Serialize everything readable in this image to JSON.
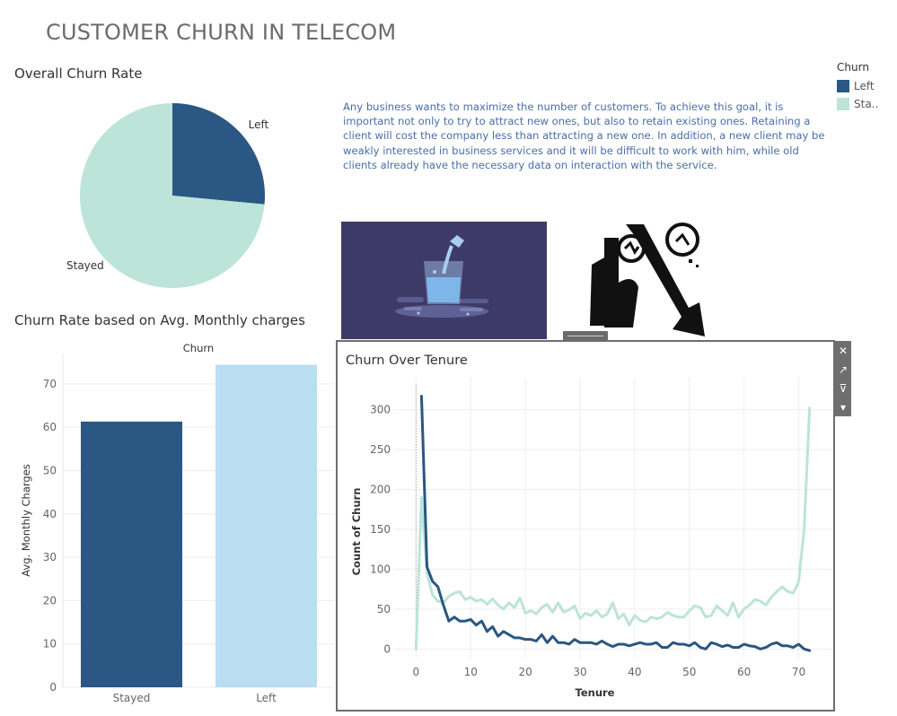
{
  "dashboard": {
    "title": "CUSTOMER CHURN IN TELECOM",
    "description": "Any business wants to maximize the number of customers. To achieve this goal, it is important not only to try to attract new ones, but also to retain existing ones. Retaining a client will cost the company less than attracting a new one. In addition, a new client may be weakly interested in business services and it will be difficult to work with him, while old clients already have the necessary data on interaction with the service."
  },
  "legend": {
    "title": "Churn",
    "items": [
      {
        "label": "Left",
        "color": "#2a5783"
      },
      {
        "label": "Sta..",
        "color": "#bce4d8"
      }
    ]
  },
  "panel_toolbar": {
    "close": "✕",
    "open": "↗",
    "filter": "⊽",
    "menu": "▾"
  },
  "colors": {
    "left": "#2a5783",
    "stayed": "#bce4d8",
    "left_bar": "#2a5783",
    "stayed_bar_light": "#b9ddf1",
    "grid": "#eeeeee"
  },
  "chart_data": [
    {
      "type": "pie",
      "title": "Overall Churn Rate",
      "slices": [
        {
          "label": "Left",
          "value": 26.5,
          "color": "#2a5783"
        },
        {
          "label": "Stayed",
          "value": 73.5,
          "color": "#bce4d8"
        }
      ]
    },
    {
      "type": "bar",
      "title": "Churn Rate based on Avg. Monthly charges",
      "header": "Churn",
      "categories": [
        "Stayed",
        "Left"
      ],
      "values": [
        61.3,
        74.4
      ],
      "colors": [
        "#2a5783",
        "#b9ddf1"
      ],
      "ylabel": "Avg. Monthly Charges",
      "ylim": [
        0,
        77
      ],
      "yticks": [
        0,
        10,
        20,
        30,
        40,
        50,
        60,
        70
      ],
      "grid": true
    },
    {
      "type": "line",
      "title": "Churn Over Tenure",
      "xlabel": "Tenure",
      "ylabel": "Count of Churn",
      "xlim": [
        -4,
        76
      ],
      "ylim": [
        -12,
        340
      ],
      "xticks": [
        0,
        10,
        20,
        30,
        40,
        50,
        60,
        70
      ],
      "yticks": [
        0,
        50,
        100,
        150,
        200,
        250,
        300
      ],
      "grid": true,
      "x": [
        0,
        1,
        2,
        3,
        4,
        5,
        6,
        7,
        8,
        9,
        10,
        11,
        12,
        13,
        14,
        15,
        16,
        17,
        18,
        19,
        20,
        21,
        22,
        23,
        24,
        25,
        26,
        27,
        28,
        29,
        30,
        31,
        32,
        33,
        34,
        35,
        36,
        37,
        38,
        39,
        40,
        41,
        42,
        43,
        44,
        45,
        46,
        47,
        48,
        49,
        50,
        51,
        52,
        53,
        54,
        55,
        56,
        57,
        58,
        59,
        60,
        61,
        62,
        63,
        64,
        65,
        66,
        67,
        68,
        69,
        70,
        71,
        72
      ],
      "series": [
        {
          "name": "Left",
          "color": "#2a5783",
          "values": [
            null,
            317,
            103,
            85,
            78,
            55,
            35,
            40,
            35,
            35,
            37,
            30,
            35,
            22,
            28,
            16,
            22,
            18,
            14,
            14,
            12,
            12,
            10,
            18,
            8,
            16,
            8,
            8,
            6,
            12,
            8,
            8,
            8,
            6,
            10,
            6,
            3,
            6,
            6,
            4,
            6,
            8,
            6,
            6,
            8,
            2,
            2,
            8,
            6,
            6,
            4,
            8,
            2,
            0,
            8,
            6,
            3,
            5,
            2,
            2,
            6,
            4,
            3,
            0,
            2,
            6,
            8,
            4,
            4,
            2,
            6,
            0,
            -2
          ]
        },
        {
          "name": "Stayed",
          "color": "#bce4d8",
          "values": [
            0,
            190,
            95,
            68,
            60,
            58,
            66,
            70,
            72,
            62,
            65,
            60,
            62,
            56,
            63,
            55,
            50,
            58,
            52,
            64,
            45,
            48,
            44,
            52,
            56,
            46,
            58,
            46,
            49,
            54,
            38,
            45,
            42,
            48,
            40,
            44,
            58,
            38,
            44,
            30,
            42,
            36,
            34,
            40,
            38,
            40,
            46,
            42,
            40,
            40,
            48,
            54,
            52,
            40,
            42,
            54,
            48,
            42,
            58,
            40,
            50,
            55,
            62,
            60,
            55,
            65,
            72,
            78,
            72,
            70,
            84,
            150,
            302
          ]
        }
      ]
    }
  ]
}
